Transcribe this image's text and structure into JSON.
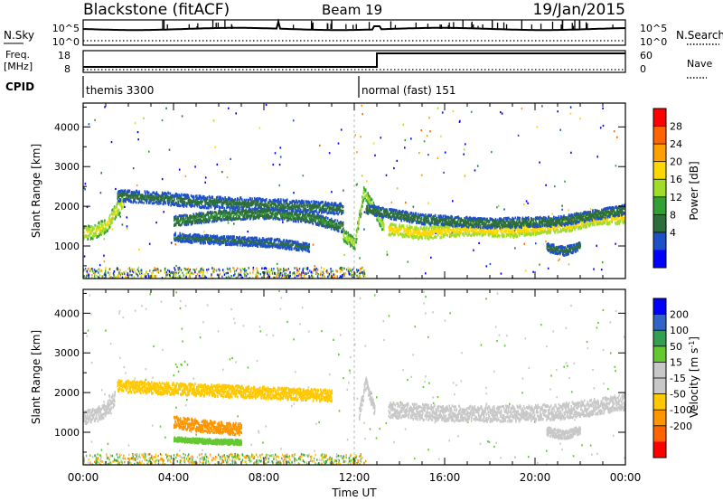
{
  "header": {
    "title": "Blackstone (fitACF)",
    "beam": "Beam 19",
    "date": "19/Jan/2015"
  },
  "top_panels": {
    "nsky_label": "N.Sky",
    "nsky_ticks": [
      "10^5",
      "10^0"
    ],
    "nsearch_label": "N.Search",
    "nsearch_ticks": [
      "10^5",
      "10^0"
    ],
    "freq_label": "Freq.",
    "freq_unit": "[MHz]",
    "freq_ticks": [
      "18",
      "8"
    ],
    "nave_label": "Nave",
    "nave_ticks": [
      "60",
      "0"
    ],
    "cpid_label": "CPID",
    "cpid_modes": [
      {
        "label": "themis 3300",
        "start_hour": 0
      },
      {
        "label": "normal (fast) 151",
        "start_hour": 12.2
      }
    ]
  },
  "chart_data": [
    {
      "type": "heatmap",
      "title": "",
      "ylabel": "Slant Range [km]",
      "xlabel": "",
      "ylim": [
        180,
        4600
      ],
      "xlim": [
        0,
        24
      ],
      "yticks": [
        1000,
        2000,
        3000,
        4000
      ],
      "colorbar": {
        "label": "Power [dB]",
        "ticks": [
          "28",
          "24",
          "20",
          "16",
          "12",
          "8",
          "4"
        ],
        "colors": [
          "#0000ff",
          "#1e50c8",
          "#2d6e3c",
          "#32a032",
          "#a0dc28",
          "#ffd700",
          "#ffa000",
          "#ff6400",
          "#ff0000"
        ]
      },
      "bands": [
        {
          "x": [
            0,
            0.5,
            1.0,
            1.4,
            1.8
          ],
          "y": [
            1350,
            1400,
            1550,
            1900,
            2150
          ],
          "width": 350,
          "value": 18
        },
        {
          "x": [
            1.5,
            3,
            5,
            7,
            9,
            10.5,
            11.5
          ],
          "y": [
            2300,
            2250,
            2150,
            2100,
            2050,
            2000,
            1950
          ],
          "width": 300,
          "value": 8
        },
        {
          "x": [
            4,
            6,
            8,
            10,
            11.5
          ],
          "y": [
            1650,
            1800,
            1850,
            1750,
            1500
          ],
          "width": 260,
          "value": 10
        },
        {
          "x": [
            4,
            5.5,
            7,
            8.5,
            10
          ],
          "y": [
            1250,
            1200,
            1150,
            1100,
            1000
          ],
          "width": 220,
          "value": 7
        },
        {
          "x": [
            11.5,
            12,
            12.4,
            12.9,
            13.3
          ],
          "y": [
            1300,
            1100,
            2400,
            1900,
            1500
          ],
          "width": 300,
          "value": 16
        },
        {
          "x": [
            13.5,
            15,
            17,
            19,
            20.5,
            21.5,
            22.5,
            24
          ],
          "y": [
            1450,
            1350,
            1450,
            1400,
            1500,
            1550,
            1700,
            1750
          ],
          "width": 300,
          "value": 20
        },
        {
          "x": [
            12.5,
            15,
            18,
            21,
            23,
            24
          ],
          "y": [
            1950,
            1700,
            1600,
            1650,
            1850,
            1950
          ],
          "width": 250,
          "value": 9
        },
        {
          "x": [
            20.5,
            21.3,
            22
          ],
          "y": [
            1000,
            900,
            1050
          ],
          "width": 220,
          "value": 8
        }
      ]
    },
    {
      "type": "heatmap",
      "title": "",
      "ylabel": "Slant Range [km]",
      "xlabel": "Time UT",
      "ylim": [
        180,
        4600
      ],
      "xlim": [
        0,
        24
      ],
      "yticks": [
        1000,
        2000,
        3000,
        4000
      ],
      "xticks": [
        "00:00",
        "04:00",
        "08:00",
        "12:00",
        "16:00",
        "20:00",
        "00:00"
      ],
      "colorbar": {
        "label": "Velocity [m s^-1]",
        "ticks": [
          "200",
          "100",
          "50",
          "15",
          "-15",
          "-50",
          "-100",
          "-200"
        ],
        "colors": [
          "#ff0000",
          "#ff6400",
          "#ff9600",
          "#ffc800",
          "#c8c8c8",
          "#c8c8c8",
          "#64c832",
          "#32a050",
          "#3264c8",
          "#0000ff"
        ]
      },
      "bands": [
        {
          "x": [
            0,
            0.5,
            1.0,
            1.4
          ],
          "y": [
            1400,
            1450,
            1600,
            1900
          ],
          "width": 350,
          "value": 0
        },
        {
          "x": [
            1.5,
            3,
            5,
            7,
            9,
            11
          ],
          "y": [
            2200,
            2150,
            2100,
            2050,
            2000,
            1950
          ],
          "width": 300,
          "value": -40
        },
        {
          "x": [
            4,
            5,
            6,
            7
          ],
          "y": [
            1300,
            1200,
            1150,
            1100
          ],
          "width": 300,
          "value": -60
        },
        {
          "x": [
            4,
            5.5,
            7
          ],
          "y": [
            850,
            800,
            780
          ],
          "width": 120,
          "value": 40
        },
        {
          "x": [
            12.2,
            12.5,
            12.9
          ],
          "y": [
            1500,
            2300,
            1500
          ],
          "width": 300,
          "value": 0
        },
        {
          "x": [
            13.5,
            16,
            19,
            21,
            23,
            24
          ],
          "y": [
            1600,
            1500,
            1500,
            1550,
            1700,
            1800
          ],
          "width": 400,
          "value": 0
        },
        {
          "x": [
            20.5,
            21.3,
            22
          ],
          "y": [
            1050,
            950,
            1100
          ],
          "width": 220,
          "value": 0
        }
      ]
    }
  ]
}
